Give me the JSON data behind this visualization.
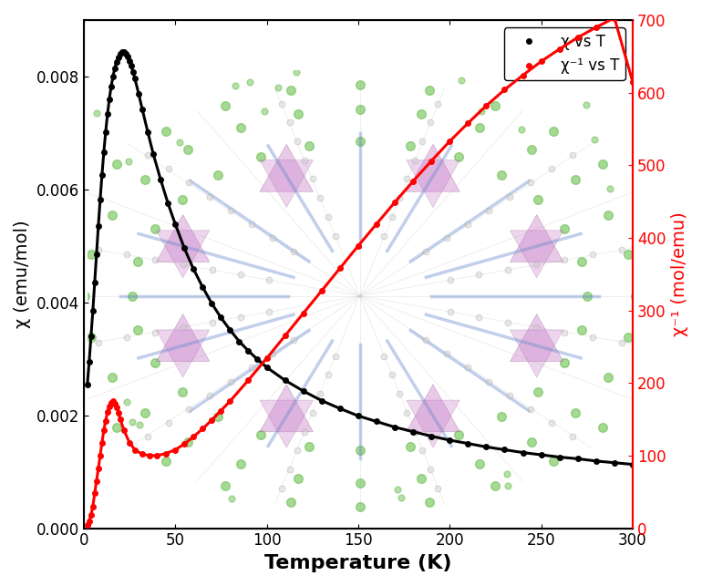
{
  "title": "",
  "xlabel": "Temperature (K)",
  "ylabel_left": "χ (emu/mol)",
  "ylabel_right": "χ⁻¹ (mol/emu)",
  "xlim": [
    0,
    300
  ],
  "ylim_left": [
    0.0,
    0.009
  ],
  "ylim_right": [
    0,
    700
  ],
  "legend": [
    {
      "label": "χ vs T",
      "color": "black"
    },
    {
      "label": "χ⁻¹ vs T",
      "color": "red"
    }
  ],
  "background_color": "white",
  "spine_color": "black",
  "chi_color": "black",
  "chi_inv_color": "red",
  "marker": "o",
  "markersize": 4,
  "linewidth": 2.2,
  "xlabel_fontsize": 16,
  "ylabel_fontsize": 14,
  "tick_fontsize": 12,
  "legend_fontsize": 12,
  "chi_T": [
    2,
    3,
    4,
    5,
    6,
    7,
    8,
    9,
    10,
    11,
    12,
    13,
    14,
    15,
    16,
    17,
    18,
    19,
    20,
    21,
    22,
    23,
    24,
    25,
    26,
    27,
    28,
    30,
    32,
    35,
    38,
    42,
    46,
    50,
    55,
    60,
    65,
    70,
    75,
    80,
    85,
    90,
    95,
    100,
    110,
    120,
    130,
    140,
    150,
    160,
    170,
    180,
    190,
    200,
    210,
    220,
    230,
    240,
    250,
    260,
    270,
    280,
    290,
    300
  ],
  "chi_vals": [
    0.00255,
    0.00295,
    0.0034,
    0.00385,
    0.00435,
    0.00485,
    0.00535,
    0.00582,
    0.00626,
    0.00666,
    0.00702,
    0.00733,
    0.0076,
    0.00782,
    0.008,
    0.00815,
    0.00826,
    0.00834,
    0.0084,
    0.00843,
    0.00843,
    0.0084,
    0.00835,
    0.00828,
    0.00819,
    0.00808,
    0.00796,
    0.0077,
    0.00742,
    0.00702,
    0.00663,
    0.00618,
    0.00576,
    0.00539,
    0.00496,
    0.00459,
    0.00427,
    0.00398,
    0.00373,
    0.00351,
    0.00331,
    0.00314,
    0.00299,
    0.00285,
    0.00262,
    0.00243,
    0.00226,
    0.00212,
    0.00199,
    0.00189,
    0.00179,
    0.00171,
    0.00163,
    0.00156,
    0.0015,
    0.00144,
    0.00139,
    0.00134,
    0.0013,
    0.00126,
    0.00123,
    0.00119,
    0.00116,
    0.00113
  ],
  "chi_inv_T": [
    2,
    3,
    4,
    5,
    6,
    7,
    8,
    9,
    10,
    11,
    12,
    13,
    14,
    15,
    16,
    17,
    18,
    19,
    20,
    22,
    25,
    28,
    32,
    36,
    40,
    45,
    50,
    55,
    60,
    65,
    70,
    75,
    80,
    90,
    100,
    110,
    120,
    130,
    140,
    150,
    160,
    170,
    180,
    190,
    200,
    210,
    220,
    230,
    240,
    250,
    260,
    270,
    280,
    290,
    300
  ],
  "chi_inv_vals": [
    5,
    10,
    18,
    30,
    48,
    65,
    82,
    100,
    118,
    135,
    148,
    160,
    168,
    173,
    175,
    172,
    167,
    159,
    150,
    135,
    118,
    108,
    102,
    100,
    100,
    103,
    108,
    116,
    126,
    137,
    149,
    162,
    175,
    204,
    234,
    265,
    296,
    327,
    358,
    389,
    419,
    449,
    478,
    506,
    533,
    558,
    582,
    604,
    624,
    643,
    660,
    676,
    690,
    703,
    615
  ]
}
